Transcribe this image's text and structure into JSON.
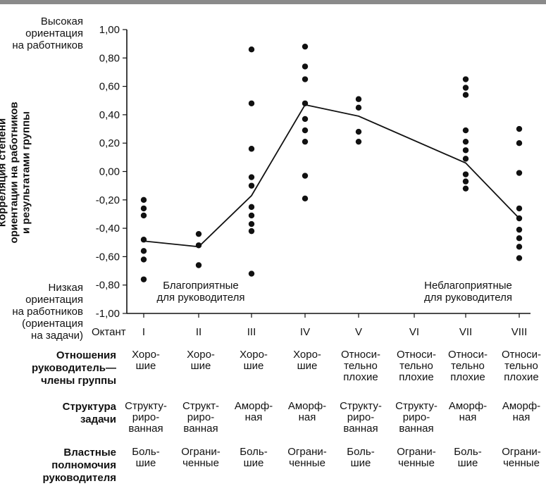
{
  "chart_data": {
    "type": "scatter",
    "ylabel": "Корреляция степени\nориентации на работников\nи результатами группы",
    "y_top_annotation": "Высокая\nориентация\nна работников",
    "y_bottom_annotation": "Низкая\nориентация\nна работников\n(ориентация\nна задачи)",
    "ylim": [
      -1.0,
      1.0
    ],
    "yticks": [
      "1,00",
      "0,80",
      "0,60",
      "0,40",
      "0,20",
      "0,00",
      "-0,20",
      "-0,40",
      "-0,60",
      "-0,80",
      "-1,00"
    ],
    "x_title": "Октант",
    "categories": [
      "I",
      "II",
      "III",
      "IV",
      "V",
      "VI",
      "VII",
      "VIII"
    ],
    "points": [
      [
        -0.2,
        -0.26,
        -0.31,
        -0.48,
        -0.56,
        -0.62,
        -0.76
      ],
      [
        -0.44,
        -0.52,
        -0.66
      ],
      [
        0.86,
        0.48,
        0.16,
        -0.04,
        -0.1,
        -0.25,
        -0.31,
        -0.37,
        -0.42,
        -0.72
      ],
      [
        0.88,
        0.74,
        0.65,
        0.48,
        0.37,
        0.29,
        0.21,
        -0.03,
        -0.19
      ],
      [
        0.51,
        0.45,
        0.28,
        0.21
      ],
      [],
      [
        0.65,
        0.59,
        0.54,
        0.29,
        0.21,
        0.15,
        0.09,
        -0.02,
        -0.07,
        -0.12
      ],
      [
        0.3,
        0.2,
        -0.01,
        -0.26,
        -0.33,
        -0.41,
        -0.47,
        -0.53,
        -0.61
      ]
    ],
    "line": [
      {
        "category": "I",
        "value": -0.49
      },
      {
        "category": "II",
        "value": -0.53
      },
      {
        "category": "III",
        "value": -0.17
      },
      {
        "category": "IV",
        "value": 0.47
      },
      {
        "category": "V",
        "value": 0.39
      },
      {
        "category": "VII",
        "value": 0.06
      },
      {
        "category": "VIII",
        "value": -0.33
      }
    ],
    "annotations": {
      "favorable": "Благоприятные\nдля руководителя",
      "unfavorable": "Неблагоприятные\nдля руководителя"
    },
    "grid": false
  },
  "table": {
    "rows": [
      {
        "label": "Отношения\nруководитель—\nчлены группы",
        "cells": [
          "Хоро-\nшие",
          "Хоро-\nшие",
          "Хоро-\nшие",
          "Хоро-\nшие",
          "Относи-\nтельно\nплохие",
          "Относи-\nтельно\nплохие",
          "Относи-\nтельно\nплохие",
          "Относи-\nтельно\nплохие"
        ]
      },
      {
        "label": "Структура\nзадачи",
        "cells": [
          "Структу-\nриро-\nванная",
          "Структ-\nриро-\nванная",
          "Аморф-\nная",
          "Аморф-\nная",
          "Структу-\nриро-\nванная",
          "Структу-\nриро-\nванная",
          "Аморф-\nная",
          "Аморф-\nная"
        ]
      },
      {
        "label": "Властные\nполномочия\nруководителя",
        "cells": [
          "Боль-\nшие",
          "Ограни-\nченные",
          "Боль-\nшие",
          "Ограни-\nченные",
          "Боль-\nшие",
          "Ограни-\nченные",
          "Боль-\nшие",
          "Ограни-\nченные"
        ]
      }
    ]
  },
  "colors": {
    "top_bar": "#8a8a8a",
    "ink": "#111111"
  }
}
